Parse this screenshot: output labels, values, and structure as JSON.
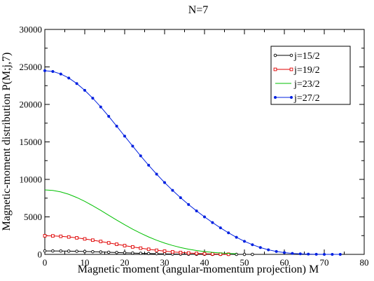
{
  "chart_data": {
    "type": "line",
    "title": "N=7",
    "xlabel": "Magnetic moment (angular-momentum projection) M",
    "ylabel": "Magnetic-moment distribution P(M;j,7)",
    "xlim": [
      0,
      80
    ],
    "ylim": [
      0,
      30000
    ],
    "xticks": [
      0,
      10,
      20,
      30,
      40,
      50,
      60,
      70,
      80
    ],
    "yticks": [
      0,
      5000,
      10000,
      15000,
      20000,
      25000,
      30000
    ],
    "legend_position": "top-right",
    "grid": false,
    "series": [
      {
        "name": "j=15/2",
        "color": "#000000",
        "marker": "circle-open",
        "x": [
          0,
          2,
          4,
          6,
          8,
          10,
          12,
          14,
          16,
          18,
          20,
          22,
          24,
          26,
          28,
          30,
          32,
          34,
          36,
          38,
          40,
          42,
          44,
          46,
          48,
          50,
          52
        ],
        "y": [
          460,
          457,
          448,
          433,
          412,
          386,
          356,
          322,
          286,
          249,
          212,
          176,
          143,
          112,
          86,
          63,
          45,
          30,
          19,
          11,
          6,
          3,
          1,
          0,
          0,
          0,
          0
        ]
      },
      {
        "name": "j=19/2",
        "color": "#e00000",
        "marker": "square-open",
        "x": [
          0,
          2,
          4,
          6,
          8,
          10,
          12,
          14,
          16,
          18,
          20,
          22,
          24,
          26,
          28,
          30,
          32,
          34,
          36,
          38,
          40,
          42,
          44,
          46
        ],
        "y": [
          2480,
          2462,
          2407,
          2320,
          2203,
          2060,
          1897,
          1720,
          1535,
          1348,
          1165,
          990,
          827,
          679,
          547,
          432,
          333,
          251,
          183,
          129,
          87,
          55,
          32,
          17
        ]
      },
      {
        "name": "j=23/2",
        "color": "#00c000",
        "marker": "none",
        "x": [
          0,
          2,
          4,
          6,
          8,
          10,
          12,
          14,
          16,
          18,
          20,
          22,
          24,
          26,
          28,
          30,
          32,
          34,
          36,
          38,
          40,
          42,
          44,
          46,
          48
        ],
        "y": [
          8600,
          8532,
          8332,
          8011,
          7583,
          7069,
          6489,
          5865,
          5221,
          4577,
          3952,
          3362,
          2817,
          2325,
          1889,
          1510,
          1186,
          915,
          693,
          515,
          375,
          267,
          186,
          126,
          83
        ]
      },
      {
        "name": "j=27/2",
        "color": "#0020e0",
        "marker": "circle-filled",
        "x": [
          0,
          2,
          4,
          6,
          8,
          10,
          12,
          14,
          16,
          18,
          20,
          22,
          24,
          26,
          28,
          30,
          32,
          34,
          36,
          38,
          40,
          42,
          44,
          46,
          48,
          50,
          52,
          54,
          56,
          58,
          60,
          62,
          64,
          66,
          68,
          70,
          72,
          74
        ],
        "y": [
          24500,
          24389,
          24058,
          23518,
          22786,
          21882,
          20832,
          19664,
          18410,
          17100,
          15767,
          14440,
          13140,
          11890,
          10700,
          9580,
          8535,
          7560,
          6650,
          5800,
          5000,
          4245,
          3535,
          2875,
          2275,
          1745,
          1290,
          912,
          613,
          388,
          230,
          127,
          65,
          30,
          12,
          4,
          1,
          0
        ]
      }
    ]
  }
}
